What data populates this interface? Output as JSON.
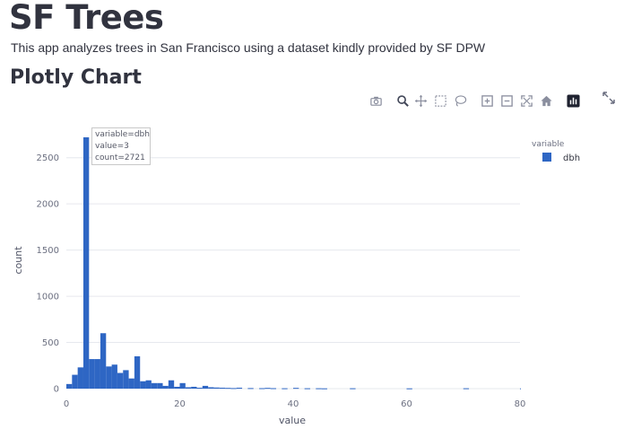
{
  "page": {
    "title": "SF Trees",
    "description": "This app analyzes trees in San Francisco using a dataset kindly provided by SF DPW",
    "section_title": "Plotly Chart"
  },
  "modebar": {
    "buttons": [
      "camera-icon",
      "zoom-icon",
      "pan-icon",
      "box-select-icon",
      "lasso-select-icon",
      "zoom-in-icon",
      "zoom-out-icon",
      "autoscale-icon",
      "reset-axes-icon",
      "plotly-logo-icon"
    ],
    "fullscreen": "fullscreen-icon"
  },
  "tooltip": {
    "line1": "variable=dbh",
    "line2": "value=3",
    "line3": "count=2721"
  },
  "colors": {
    "bar": "#2e66c4",
    "grid": "#e6e8ee",
    "text": "#31333f"
  },
  "chart_data": {
    "type": "bar",
    "xlabel": "value",
    "ylabel": "count",
    "xlim": [
      0,
      80
    ],
    "ylim": [
      0,
      2750
    ],
    "xticks": [
      0,
      20,
      40,
      60,
      80
    ],
    "yticks": [
      0,
      500,
      1000,
      1500,
      2000,
      2500
    ],
    "legend_title": "variable",
    "legend_position": "top-right",
    "grid": true,
    "bin_width": 1,
    "series": [
      {
        "name": "dbh",
        "x": [
          0,
          1,
          2,
          3,
          4,
          5,
          6,
          7,
          8,
          9,
          10,
          11,
          12,
          13,
          14,
          15,
          16,
          17,
          18,
          19,
          20,
          21,
          22,
          23,
          24,
          25,
          26,
          27,
          28,
          29,
          30,
          32,
          34,
          35,
          36,
          38,
          40,
          42,
          44,
          45,
          50,
          60,
          70,
          80
        ],
        "values": [
          50,
          150,
          230,
          2721,
          320,
          320,
          600,
          240,
          260,
          170,
          200,
          110,
          350,
          80,
          90,
          60,
          60,
          30,
          90,
          20,
          60,
          15,
          20,
          10,
          30,
          15,
          12,
          10,
          8,
          6,
          10,
          6,
          5,
          8,
          5,
          4,
          8,
          4,
          4,
          3,
          4,
          3,
          4,
          3
        ]
      }
    ]
  }
}
